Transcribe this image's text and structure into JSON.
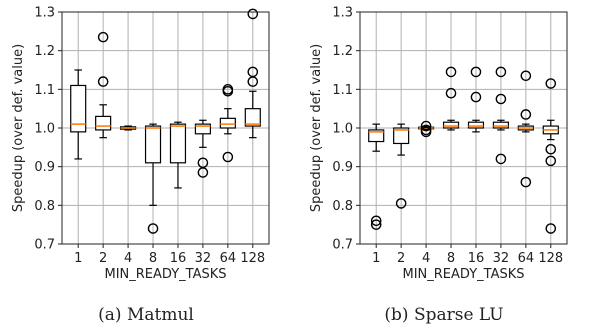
{
  "chart_data": [
    {
      "type": "box",
      "caption": "(a) Matmul",
      "xlabel": "MIN_READY_TASKS",
      "ylabel": "Speedup (over def. value)",
      "ylim": [
        0.7,
        1.3
      ],
      "yticks": [
        "0.7",
        "0.8",
        "0.9",
        "1.0",
        "1.1",
        "1.2",
        "1.3"
      ],
      "categories": [
        "1",
        "2",
        "4",
        "8",
        "16",
        "32",
        "64",
        "128"
      ],
      "grid": true,
      "boxes": [
        {
          "q1": 0.99,
          "median": 1.01,
          "q3": 1.11,
          "whislo": 0.92,
          "whishi": 1.15,
          "fliers": []
        },
        {
          "q1": 0.995,
          "median": 1.005,
          "q3": 1.03,
          "whislo": 0.975,
          "whishi": 1.06,
          "fliers": [
            1.12,
            1.235
          ]
        },
        {
          "q1": 0.997,
          "median": 1.0,
          "q3": 1.003,
          "whislo": 0.995,
          "whishi": 1.005,
          "fliers": []
        },
        {
          "q1": 0.91,
          "median": 1.0,
          "q3": 1.005,
          "whislo": 0.8,
          "whishi": 1.01,
          "fliers": [
            0.74
          ]
        },
        {
          "q1": 0.91,
          "median": 1.005,
          "q3": 1.01,
          "whislo": 0.845,
          "whishi": 1.015,
          "fliers": []
        },
        {
          "q1": 0.985,
          "median": 1.005,
          "q3": 1.01,
          "whislo": 0.95,
          "whishi": 1.02,
          "fliers": [
            0.91,
            0.885
          ]
        },
        {
          "q1": 1.0,
          "median": 1.01,
          "q3": 1.025,
          "whislo": 0.985,
          "whishi": 1.05,
          "fliers": [
            1.095,
            1.1,
            0.925
          ]
        },
        {
          "q1": 1.005,
          "median": 1.01,
          "q3": 1.05,
          "whislo": 0.975,
          "whishi": 1.095,
          "fliers": [
            1.12,
            1.145,
            1.295
          ]
        }
      ]
    },
    {
      "type": "box",
      "caption": "(b) Sparse LU",
      "xlabel": "MIN_READY_TASKS",
      "ylabel": "Speedup (over def. value)",
      "ylim": [
        0.7,
        1.3
      ],
      "yticks": [
        "0.7",
        "0.8",
        "0.9",
        "1.0",
        "1.1",
        "1.2",
        "1.3"
      ],
      "categories": [
        "1",
        "2",
        "4",
        "8",
        "16",
        "32",
        "64",
        "128"
      ],
      "grid": true,
      "boxes": [
        {
          "q1": 0.965,
          "median": 0.99,
          "q3": 0.995,
          "whislo": 0.94,
          "whishi": 1.01,
          "fliers": [
            0.76,
            0.75
          ]
        },
        {
          "q1": 0.96,
          "median": 0.995,
          "q3": 1.0,
          "whislo": 0.93,
          "whishi": 1.01,
          "fliers": [
            0.805
          ]
        },
        {
          "q1": 0.998,
          "median": 1.0,
          "q3": 1.002,
          "whislo": 0.996,
          "whishi": 1.004,
          "fliers": [
            1.005,
            0.995,
            0.99
          ]
        },
        {
          "q1": 1.0,
          "median": 1.005,
          "q3": 1.015,
          "whislo": 0.995,
          "whishi": 1.02,
          "fliers": [
            1.09,
            1.145
          ]
        },
        {
          "q1": 1.0,
          "median": 1.005,
          "q3": 1.015,
          "whislo": 0.99,
          "whishi": 1.02,
          "fliers": [
            1.08,
            1.145
          ]
        },
        {
          "q1": 1.0,
          "median": 1.005,
          "q3": 1.015,
          "whislo": 0.995,
          "whishi": 1.02,
          "fliers": [
            1.075,
            1.145,
            0.92
          ]
        },
        {
          "q1": 0.995,
          "median": 1.0,
          "q3": 1.005,
          "whislo": 0.99,
          "whishi": 1.01,
          "fliers": [
            1.035,
            1.135,
            0.86
          ]
        },
        {
          "q1": 0.985,
          "median": 0.995,
          "q3": 1.005,
          "whislo": 0.97,
          "whishi": 1.02,
          "fliers": [
            1.115,
            0.945,
            0.915,
            0.74
          ]
        }
      ]
    }
  ]
}
